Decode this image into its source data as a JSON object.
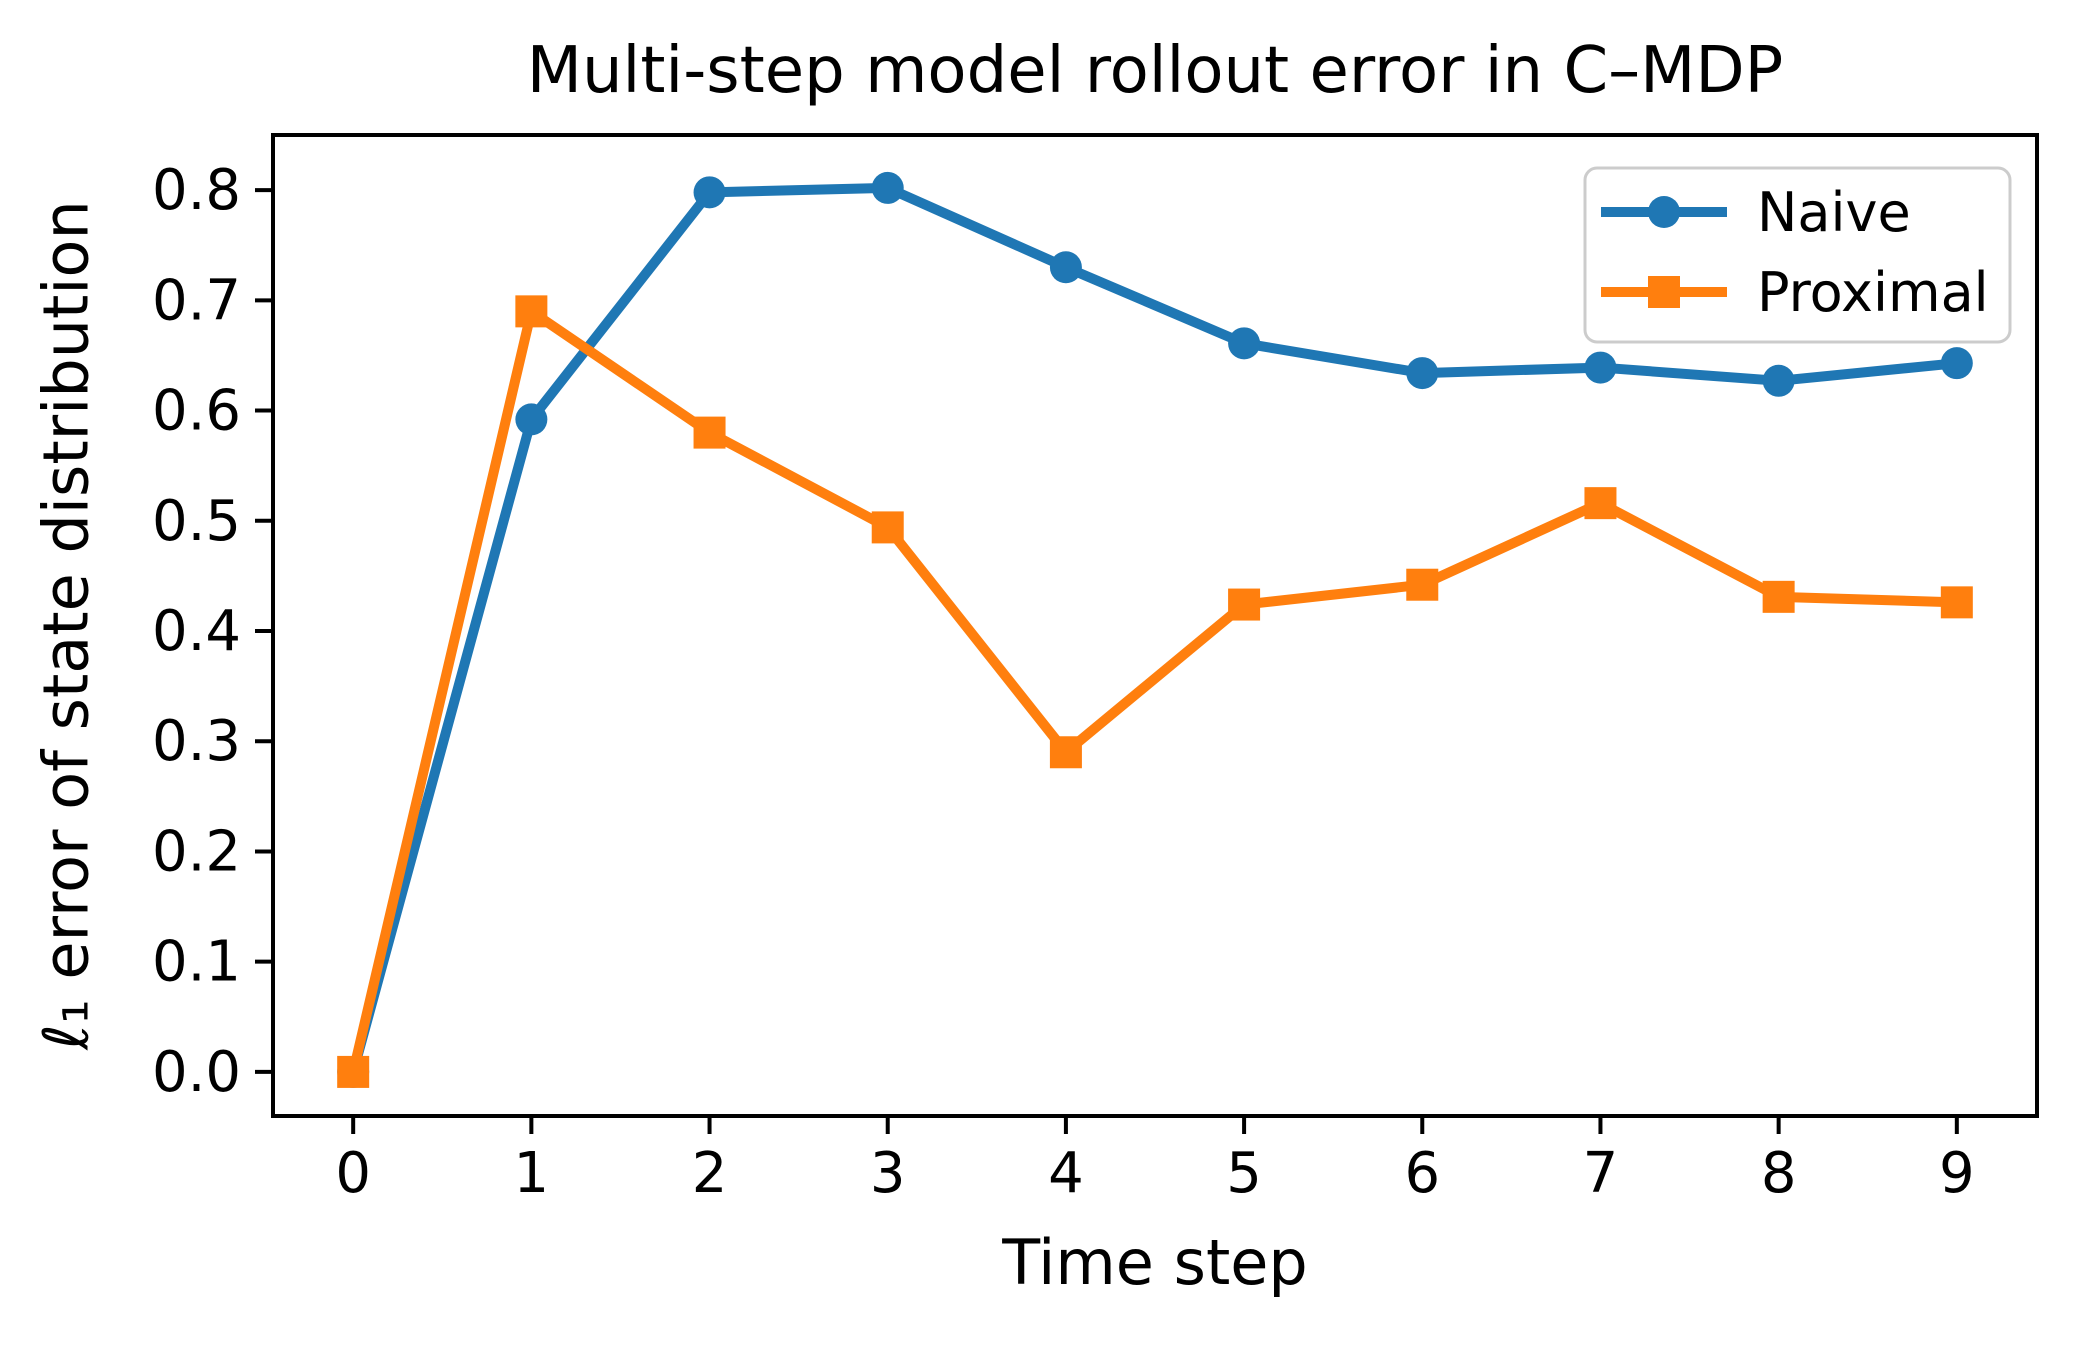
{
  "chart_data": {
    "type": "line",
    "title": "Multi-step model rollout error in C–MDP",
    "xlabel": "Time step",
    "ylabel": "ℓ₁ error of state distribution",
    "x": [
      0,
      1,
      2,
      3,
      4,
      5,
      6,
      7,
      8,
      9
    ],
    "series": [
      {
        "name": "Naive",
        "color": "#1f77b4",
        "marker": "circle",
        "values": [
          0.0,
          0.592,
          0.798,
          0.802,
          0.73,
          0.661,
          0.634,
          0.639,
          0.627,
          0.643
        ]
      },
      {
        "name": "Proximal",
        "color": "#ff7f0e",
        "marker": "square",
        "values": [
          0.0,
          0.69,
          0.58,
          0.494,
          0.29,
          0.424,
          0.442,
          0.516,
          0.431,
          0.426
        ]
      }
    ],
    "xtick_labels": [
      "0",
      "1",
      "2",
      "3",
      "4",
      "5",
      "6",
      "7",
      "8",
      "9"
    ],
    "yticks": [
      0.0,
      0.1,
      0.2,
      0.3,
      0.4,
      0.5,
      0.6,
      0.7,
      0.8
    ],
    "ytick_labels": [
      "0.0",
      "0.1",
      "0.2",
      "0.3",
      "0.4",
      "0.5",
      "0.6",
      "0.7",
      "0.8"
    ],
    "xlim": [
      -0.45,
      9.45
    ],
    "ylim": [
      -0.04,
      0.85
    ],
    "grid": false,
    "background_color": "#ffffff",
    "spine_color": "#000000",
    "text_color": "#000000",
    "legend": {
      "position": "upper right",
      "border_color": "#cccccc",
      "background_color": "#ffffff",
      "entries": [
        "Naive",
        "Proximal"
      ]
    }
  }
}
